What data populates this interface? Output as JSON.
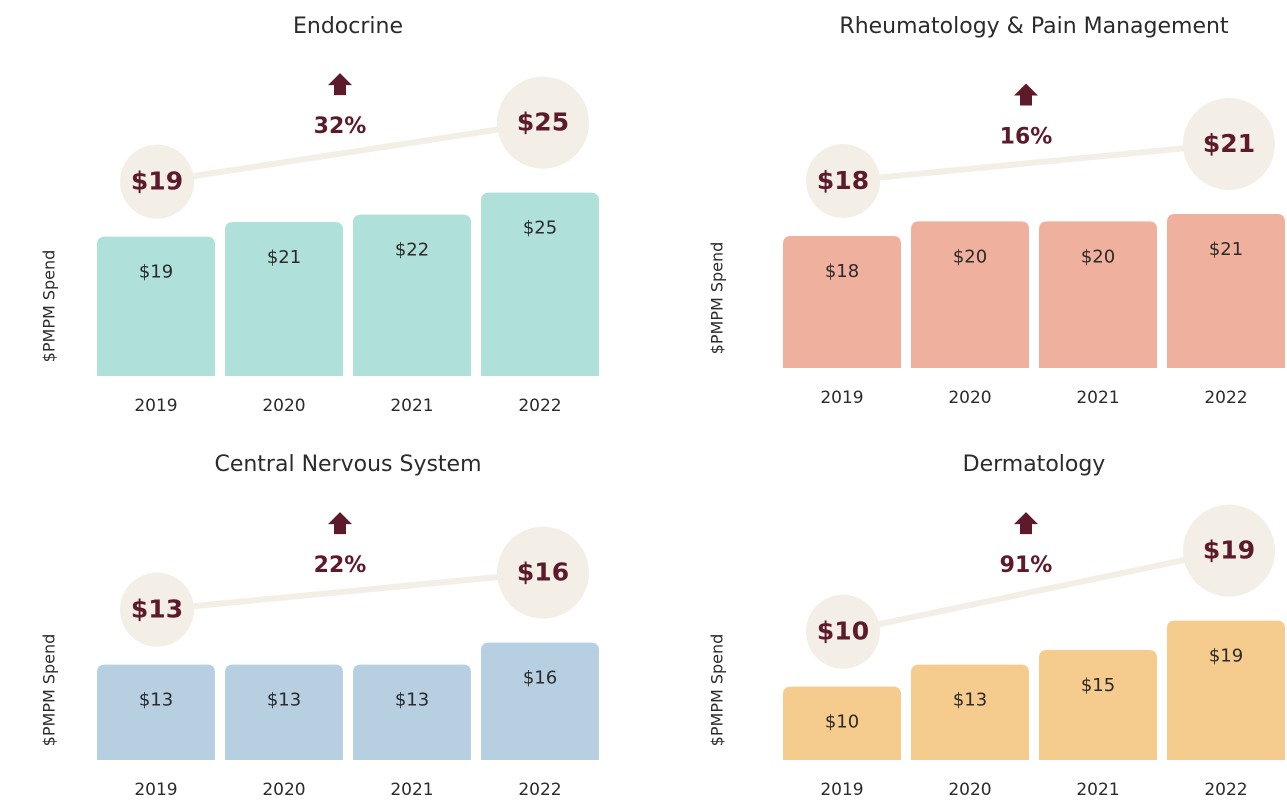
{
  "chart_data": [
    {
      "type": "bar",
      "title": "Endocrine",
      "ylabel": "$PMPM Spend",
      "categories": [
        "2019",
        "2020",
        "2021",
        "2022"
      ],
      "values": [
        19,
        21,
        22,
        25
      ],
      "value_labels": [
        "$19",
        "$21",
        "$22",
        "$25"
      ],
      "color": "#b0e0da",
      "ylim": [
        0,
        30
      ],
      "change": {
        "value": 32,
        "label": "32%"
      }
    },
    {
      "type": "bar",
      "title": "Rheumatology & Pain Management",
      "ylabel": "$PMPM Spend",
      "categories": [
        "2019",
        "2020",
        "2021",
        "2022"
      ],
      "values": [
        18,
        20,
        20,
        21
      ],
      "value_labels": [
        "$18",
        "$20",
        "$20",
        "$21"
      ],
      "color": "#f0b09e",
      "ylim": [
        0,
        30
      ],
      "change": {
        "value": 16,
        "label": "16%"
      }
    },
    {
      "type": "bar",
      "title": "Central Nervous System",
      "ylabel": "$PMPM Spend",
      "categories": [
        "2019",
        "2020",
        "2021",
        "2022"
      ],
      "values": [
        13,
        13,
        13,
        16
      ],
      "value_labels": [
        "$13",
        "$13",
        "$13",
        "$16"
      ],
      "color": "#b6cfe1",
      "ylim": [
        0,
        30
      ],
      "change": {
        "value": 22,
        "label": "22%"
      }
    },
    {
      "type": "bar",
      "title": "Dermatology",
      "ylabel": "$PMPM Spend",
      "categories": [
        "2019",
        "2020",
        "2021",
        "2022"
      ],
      "values": [
        10,
        13,
        15,
        19
      ],
      "value_labels": [
        "$10",
        "$13",
        "$15",
        "$19"
      ],
      "color": "#f5cc8e",
      "ylim": [
        0,
        30
      ],
      "change": {
        "value": 91,
        "label": "91%"
      }
    }
  ]
}
